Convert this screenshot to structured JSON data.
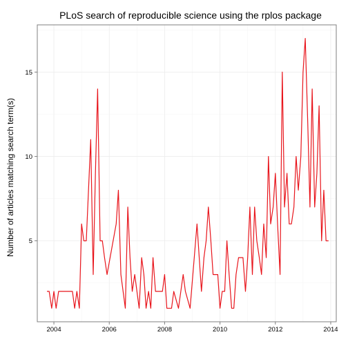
{
  "chart_data": {
    "type": "line",
    "title": "PLoS search of  reproducible science  using the rplos package",
    "xlabel": "",
    "ylabel": "Number of articles matching search term(s)",
    "xlim": [
      2003.4,
      2014.2
    ],
    "ylim": [
      0.2,
      17.8
    ],
    "x_ticks": [
      2004,
      2006,
      2008,
      2010,
      2012,
      2014
    ],
    "x_tick_labels": [
      "2004",
      "2006",
      "2008",
      "2010",
      "2012",
      "2014"
    ],
    "y_ticks": [
      5,
      10,
      15
    ],
    "y_tick_labels": [
      "5",
      "10",
      "15"
    ],
    "grid": true,
    "line_color": "#e8141b",
    "series": [
      {
        "x": [
          2003.75,
          2003.83,
          2003.92,
          2004.0,
          2004.08,
          2004.17,
          2004.25,
          2004.33,
          2004.42,
          2004.5,
          2004.58,
          2004.67,
          2004.75,
          2004.83,
          2004.92,
          2005.0,
          2005.08,
          2005.17,
          2005.25,
          2005.33,
          2005.42,
          2005.5,
          2005.58,
          2005.67,
          2005.75,
          2005.83,
          2005.92,
          2006.25,
          2006.33,
          2006.42,
          2006.58,
          2006.67,
          2006.75,
          2006.83,
          2006.92,
          2007.0,
          2007.08,
          2007.17,
          2007.25,
          2007.33,
          2007.42,
          2007.5,
          2007.58,
          2007.67,
          2007.75,
          2007.83,
          2007.92,
          2008.0,
          2008.08,
          2008.17,
          2008.25,
          2008.33,
          2008.5,
          2008.67,
          2008.75,
          2008.92,
          2009.17,
          2009.33,
          2009.42,
          2009.5,
          2009.58,
          2009.67,
          2009.75,
          2009.83,
          2009.92,
          2010.0,
          2010.08,
          2010.17,
          2010.25,
          2010.33,
          2010.42,
          2010.5,
          2010.58,
          2010.67,
          2010.75,
          2010.83,
          2010.92,
          2011.0,
          2011.08,
          2011.17,
          2011.25,
          2011.33,
          2011.42,
          2011.5,
          2011.58,
          2011.67,
          2011.75,
          2011.83,
          2011.92,
          2012.0,
          2012.08,
          2012.17,
          2012.25,
          2012.33,
          2012.42,
          2012.5,
          2012.58,
          2012.67,
          2012.75,
          2012.83,
          2012.92,
          2013.0,
          2013.08,
          2013.17,
          2013.25,
          2013.33,
          2013.42,
          2013.5,
          2013.58,
          2013.67,
          2013.75,
          2013.83,
          2013.92
        ],
        "values": [
          2,
          2,
          1,
          2,
          1,
          2,
          2,
          2,
          2,
          2,
          2,
          2,
          1,
          2,
          1,
          6,
          5,
          5,
          8,
          11,
          3,
          9,
          14,
          5,
          5,
          4,
          3,
          6,
          8,
          3,
          1,
          7,
          4,
          2,
          3,
          2,
          1,
          4,
          3,
          1,
          2,
          1,
          4,
          2,
          2,
          2,
          2,
          3,
          1,
          1,
          1,
          2,
          1,
          3,
          2,
          1,
          6,
          2,
          4,
          5,
          7,
          5,
          3,
          3,
          3,
          1,
          2,
          2,
          5,
          3,
          1,
          1,
          3,
          4,
          4,
          4,
          2,
          4,
          7,
          3,
          7,
          5,
          4,
          3,
          6,
          4,
          10,
          6,
          7,
          9,
          6,
          3,
          15,
          7,
          9,
          6,
          6,
          7,
          10,
          8,
          10,
          15,
          17,
          12,
          7,
          14,
          7,
          9,
          13,
          5,
          8,
          5,
          5
        ]
      }
    ]
  }
}
